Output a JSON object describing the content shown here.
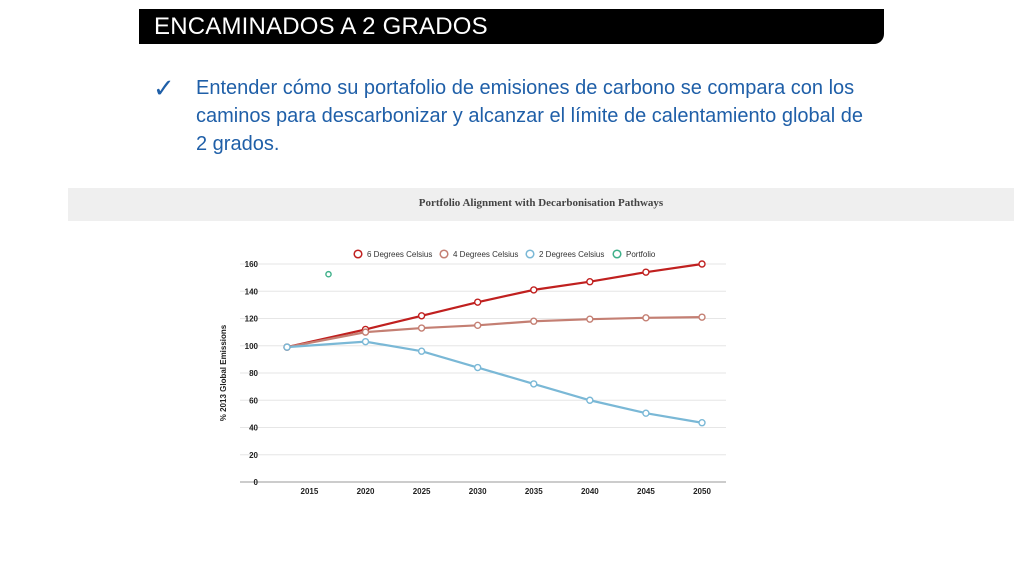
{
  "slide": {
    "title": "ENCAMINADOS A 2 GRADOS",
    "check_icon": "check-icon",
    "bullet": "Entender cómo su portafolio de emisiones de carbono se compara con los caminos para descarbonizar y alcanzar el límite de calentamiento global de 2 grados.",
    "accent_color": "#1f5fa8"
  },
  "chart_data": {
    "type": "line",
    "title": "Portfolio Alignment with Decarbonisation Pathways",
    "xlabel": "",
    "ylabel": "% 2013 Global Emissions",
    "x": [
      2013,
      2020,
      2025,
      2030,
      2035,
      2040,
      2045,
      2050
    ],
    "x_ticks": [
      "2015",
      "2020",
      "2025",
      "2030",
      "2035",
      "2040",
      "2045",
      "2050"
    ],
    "y_ticks": [
      "0",
      "20",
      "40",
      "60",
      "80",
      "100",
      "120",
      "140",
      "160"
    ],
    "ylim": [
      0,
      160
    ],
    "grid": true,
    "legend_position": "top",
    "series": [
      {
        "name": "6 Degrees Celsius",
        "color": "#c0201f",
        "values": [
          99,
          112,
          122,
          132,
          141,
          147,
          154,
          160
        ]
      },
      {
        "name": "4 Degrees Celsius",
        "color": "#c47f73",
        "values": [
          99,
          110,
          113,
          115,
          118,
          119.5,
          120.5,
          121
        ]
      },
      {
        "name": "2 Degrees Celsius",
        "color": "#7ab8d6",
        "values": [
          99,
          103,
          96,
          84,
          72,
          60,
          50.5,
          43.5
        ]
      },
      {
        "name": "Portfolio",
        "color": "#3fb08a",
        "points": [
          [
            2016.7,
            152.5
          ]
        ]
      }
    ]
  }
}
